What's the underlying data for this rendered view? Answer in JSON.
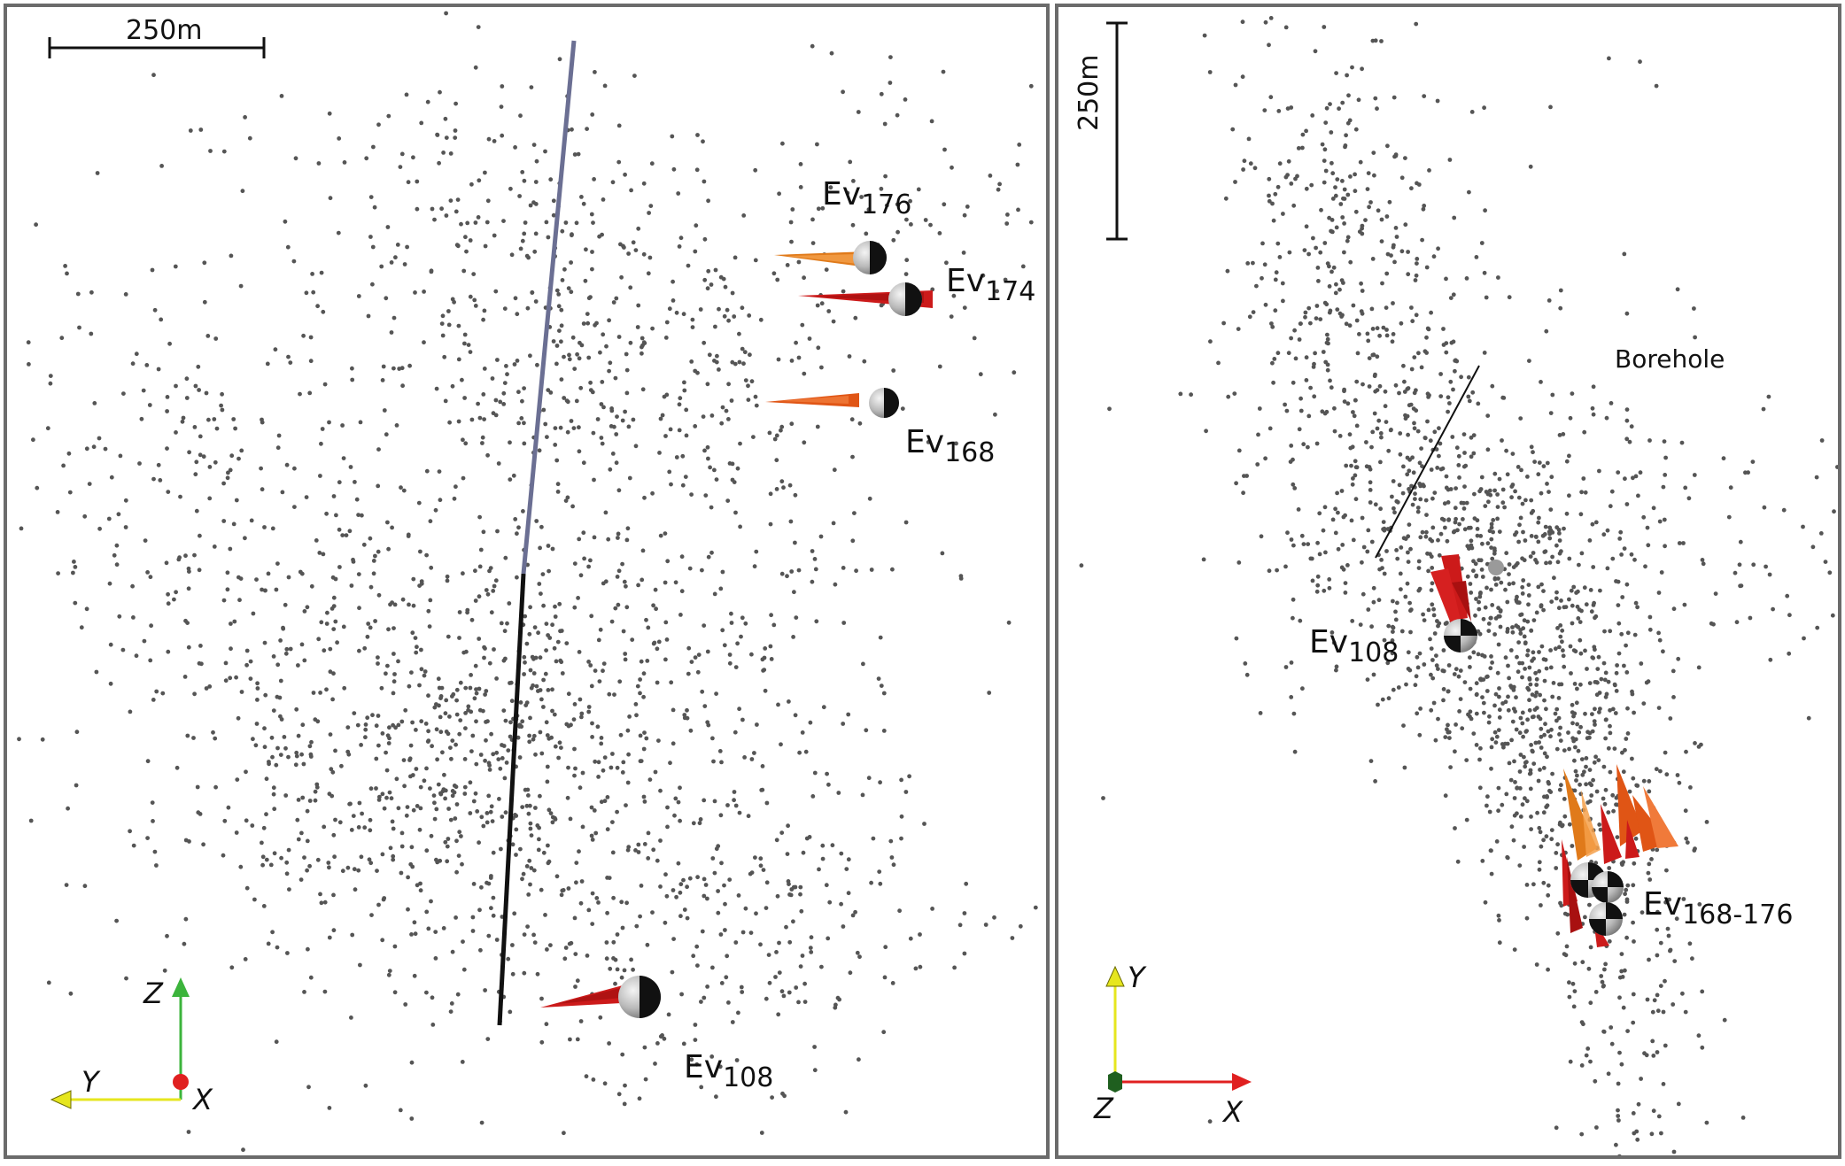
{
  "left_panel": {
    "scale_label": "250m",
    "events": [
      {
        "name": "Ev",
        "sub": "176"
      },
      {
        "name": "Ev",
        "sub": "174"
      },
      {
        "name": "Ev",
        "sub": "168"
      },
      {
        "name": "Ev",
        "sub": "108"
      }
    ],
    "axes": {
      "vertical": "Z",
      "horizontal": "Y",
      "out_of_plane": "X"
    }
  },
  "right_panel": {
    "scale_label": "250m",
    "borehole_label": "Borehole",
    "events": [
      {
        "name": "Ev",
        "sub": "108"
      },
      {
        "name": "Ev",
        "sub": "168-176"
      }
    ],
    "axes": {
      "vertical": "Y",
      "horizontal": "X",
      "out_of_plane": "Z"
    }
  },
  "colors": {
    "seismic_point": "#555555",
    "borehole_upper": "#6b6f93",
    "borehole_lower": "#111111",
    "arrow_red": "#cc1a1a",
    "arrow_orange": "#e07a1a",
    "arrow_darkorange": "#e05515",
    "axis_z_green": "#3cb43c",
    "axis_y_yellow": "#e6e61e",
    "axis_x_red": "#e02020",
    "axis_z_darkgreen": "#1f5f1f"
  }
}
